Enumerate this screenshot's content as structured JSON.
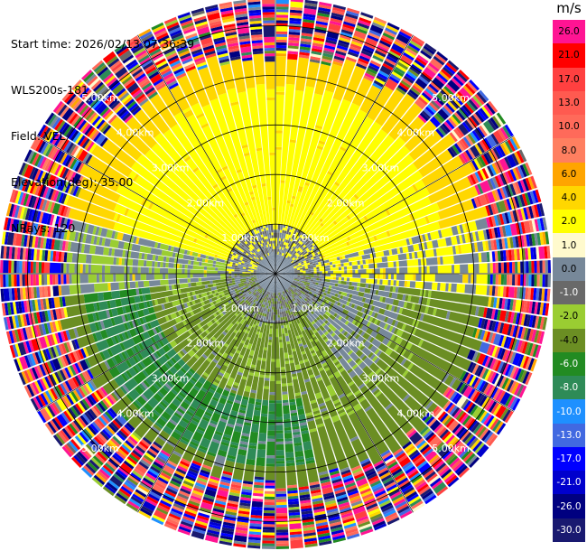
{
  "header": {
    "start_time": "Start time: 2026/02/13 07:36:39",
    "instrument": "WLS200s-181",
    "field": "Field: VEL",
    "elevation": "Elevation(deg): 35.00",
    "nrays": "NRays: 120"
  },
  "colorbar": {
    "unit": "m/s",
    "levels": [
      {
        "label": "26.0",
        "color": "#ff1493"
      },
      {
        "label": "21.0",
        "color": "#ff0000"
      },
      {
        "label": "17.0",
        "color": "#ff4040"
      },
      {
        "label": "13.0",
        "color": "#ff5a50"
      },
      {
        "label": "10.0",
        "color": "#ff6a5a"
      },
      {
        "label": "8.0",
        "color": "#ff7f60"
      },
      {
        "label": "6.0",
        "color": "#ffa500"
      },
      {
        "label": "4.0",
        "color": "#ffd700"
      },
      {
        "label": "2.0",
        "color": "#ffff00"
      },
      {
        "label": "1.0",
        "color": "#fffacd"
      },
      {
        "label": "0.0",
        "color": "#778899"
      },
      {
        "label": "-1.0",
        "color": "#696969"
      },
      {
        "label": "-2.0",
        "color": "#9acd32"
      },
      {
        "label": "-4.0",
        "color": "#6b8e23"
      },
      {
        "label": "-6.0",
        "color": "#228b22"
      },
      {
        "label": "-8.0",
        "color": "#2e8b57"
      },
      {
        "label": "-10.0",
        "color": "#1e90ff"
      },
      {
        "label": "-13.0",
        "color": "#4169e1"
      },
      {
        "label": "-17.0",
        "color": "#0000ff"
      },
      {
        "label": "-21.0",
        "color": "#0000cd"
      },
      {
        "label": "-26.0",
        "color": "#000080"
      },
      {
        "label": "-30.0",
        "color": "#191970"
      }
    ]
  },
  "chart_data": {
    "type": "heatmap",
    "projection": "polar-ppi",
    "nrays": 120,
    "max_range_km": 5.0,
    "range_rings_km": [
      1,
      2,
      3,
      4,
      5
    ],
    "ring_labels": [
      "1.00km",
      "2.00km",
      "3.00km",
      "4.00km",
      "5.00km"
    ],
    "spoke_interval_deg": 30,
    "regions": [
      {
        "name": "near-center",
        "range_km": [
          0,
          0.9
        ],
        "value": 0.0
      },
      {
        "name": "north-receding",
        "azimuth_deg": [
          270,
          90
        ],
        "range_km": [
          0.5,
          3.3
        ],
        "value": 2.0
      },
      {
        "name": "north-outer",
        "azimuth_deg": [
          300,
          90
        ],
        "range_km": [
          3.0,
          3.6
        ],
        "value": 5.0
      },
      {
        "name": "south-approaching",
        "azimuth_deg": [
          90,
          270
        ],
        "range_km": [
          0.3,
          3.5
        ],
        "value": -3.0
      },
      {
        "name": "noise-outer",
        "range_km": [
          3.7,
          5.0
        ],
        "value": "noise"
      }
    ]
  }
}
